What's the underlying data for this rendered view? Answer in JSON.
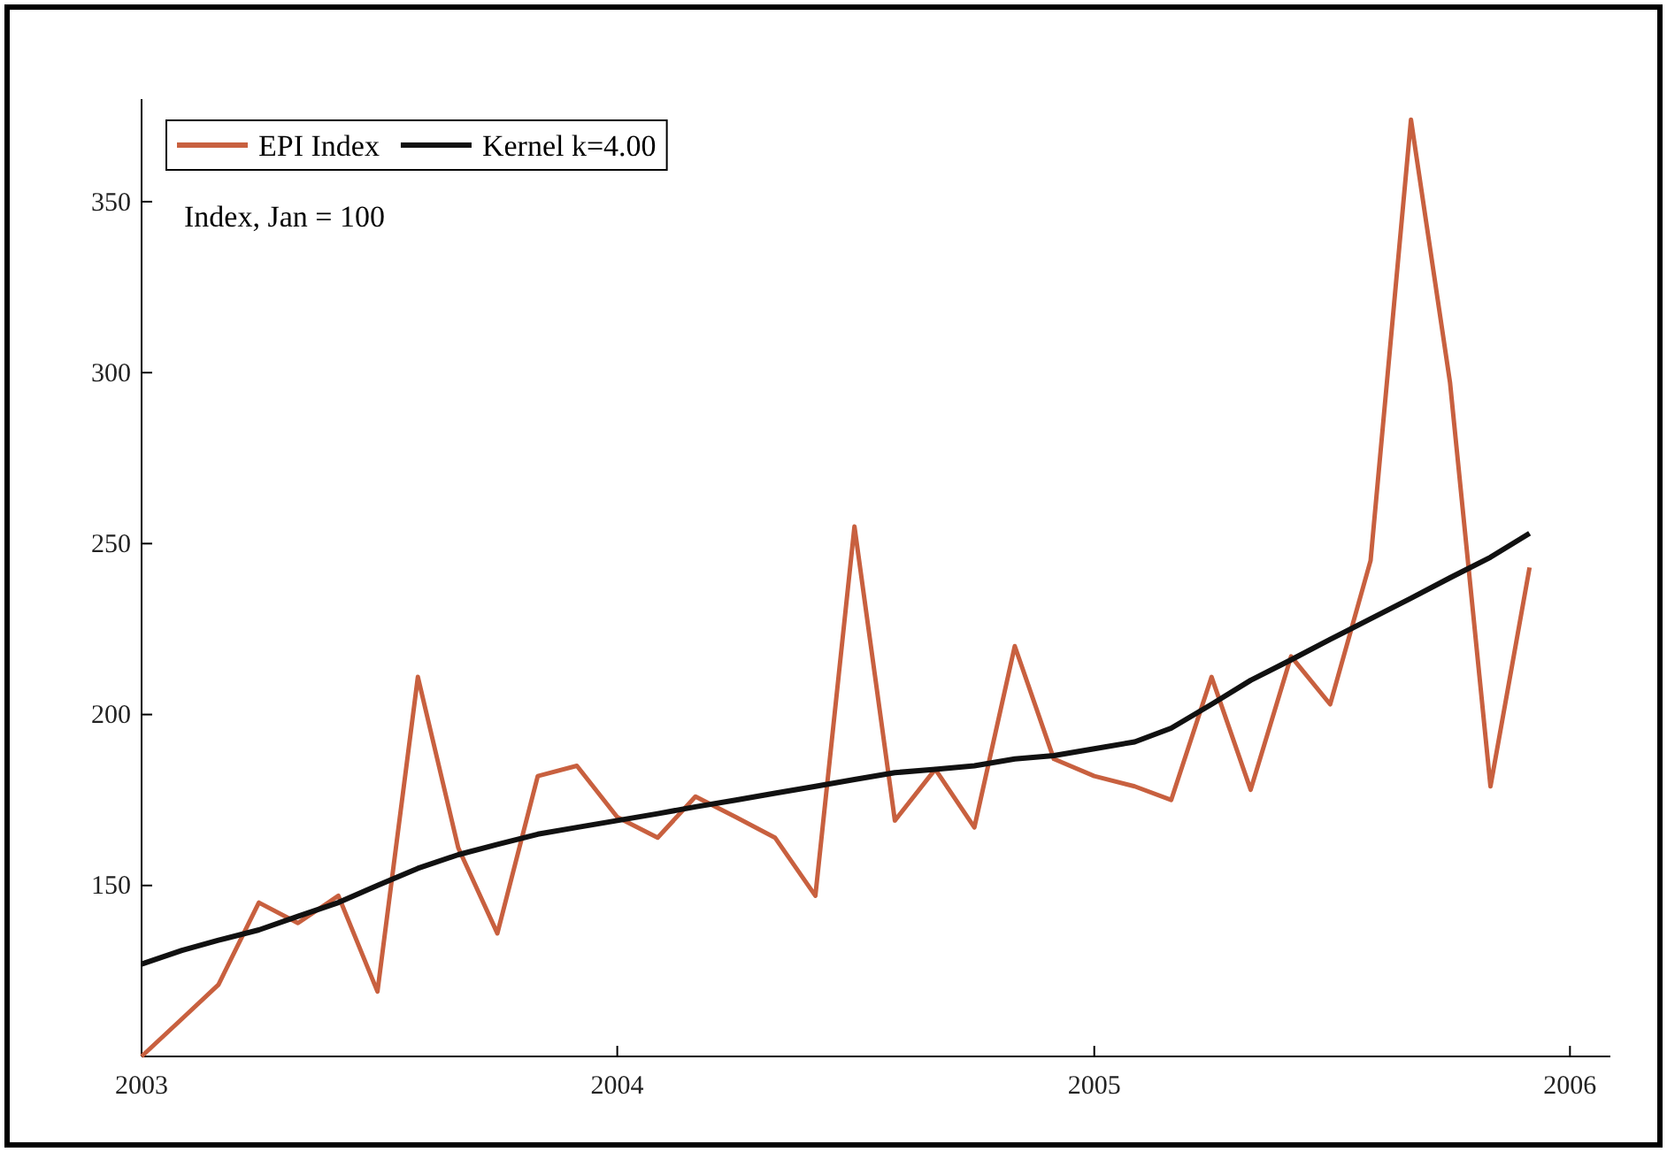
{
  "chart_data": {
    "type": "line",
    "x": [
      "2003-01",
      "2003-02",
      "2003-03",
      "2003-04",
      "2003-05",
      "2003-06",
      "2003-07",
      "2003-08",
      "2003-09",
      "2003-10",
      "2003-11",
      "2003-12",
      "2004-01",
      "2004-02",
      "2004-03",
      "2004-04",
      "2004-05",
      "2004-06",
      "2004-07",
      "2004-08",
      "2004-09",
      "2004-10",
      "2004-11",
      "2004-12",
      "2005-01",
      "2005-02",
      "2005-03",
      "2005-04",
      "2005-05",
      "2005-06",
      "2005-07",
      "2005-08",
      "2005-09",
      "2005-10",
      "2005-11",
      "2005-12"
    ],
    "series": [
      {
        "name": "EPI Index",
        "color": "#c8603f",
        "values": [
          100,
          111,
          121,
          145,
          139,
          147,
          119,
          211,
          161,
          136,
          182,
          185,
          170,
          164,
          176,
          170,
          164,
          147,
          255,
          169,
          184,
          167,
          220,
          187,
          182,
          179,
          175,
          211,
          178,
          217,
          203,
          245,
          374,
          297,
          179,
          243
        ]
      },
      {
        "name": "Kernel k=4.00",
        "color": "#111111",
        "values": [
          127,
          131,
          134,
          137,
          141,
          145,
          150,
          155,
          159,
          162,
          165,
          167,
          169,
          171,
          173,
          175,
          177,
          179,
          181,
          183,
          184,
          185,
          187,
          188,
          190,
          192,
          196,
          203,
          210,
          216,
          222,
          228,
          234,
          240,
          246,
          253
        ]
      }
    ],
    "xlim": [
      "2003-01",
      "2006-02"
    ],
    "xticks": [
      {
        "value": "2003-01",
        "label": "2003"
      },
      {
        "value": "2004-01",
        "label": "2004"
      },
      {
        "value": "2005-01",
        "label": "2005"
      },
      {
        "value": "2006-01",
        "label": "2006"
      }
    ],
    "ylim": [
      100,
      380
    ],
    "yticks": [
      150,
      200,
      250,
      300,
      350
    ],
    "annotations": [
      "Index, Jan = 100"
    ],
    "legend": "top left",
    "grid": false,
    "line_style": "solid",
    "marker": "none"
  }
}
